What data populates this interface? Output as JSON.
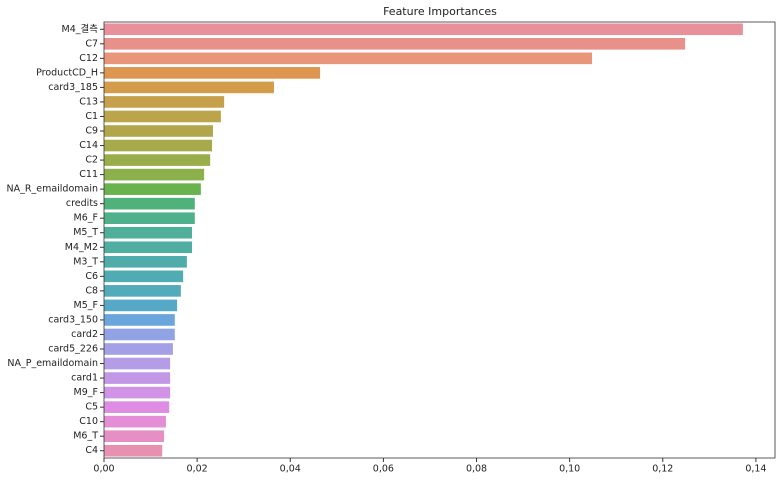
{
  "chart_data": {
    "type": "bar",
    "orientation": "horizontal",
    "title": "Feature Importances",
    "categories": [
      "M4_결측",
      "C7",
      "C12",
      "ProductCD_H",
      "card3_185",
      "C13",
      "C1",
      "C9",
      "C14",
      "C2",
      "C11",
      "NA_R_emaildomain",
      "credits",
      "M6_F",
      "M5_T",
      "M4_M2",
      "M3_T",
      "C6",
      "C8",
      "M5_F",
      "card3_150",
      "card2",
      "card5_226",
      "NA_P_emaildomain",
      "card1",
      "M9_F",
      "C5",
      "C10",
      "M6_T",
      "C4"
    ],
    "values": [
      0.1372,
      0.1248,
      0.1048,
      0.0464,
      0.0365,
      0.0258,
      0.0251,
      0.0234,
      0.0232,
      0.0228,
      0.0215,
      0.0208,
      0.0195,
      0.0195,
      0.0189,
      0.0189,
      0.0178,
      0.017,
      0.0165,
      0.0157,
      0.0152,
      0.0152,
      0.0148,
      0.0142,
      0.0142,
      0.0142,
      0.014,
      0.0133,
      0.0129,
      0.0125
    ],
    "colors": [
      "#e8919b",
      "#e8918a",
      "#e8957a",
      "#dd9550",
      "#d29c4b",
      "#c6a04a",
      "#bba44a",
      "#b1a74a",
      "#a6aa4b",
      "#9aad4b",
      "#8bb04c",
      "#68b34e",
      "#4fb27a",
      "#4fb08c",
      "#4faf98",
      "#4fada1",
      "#50acaa",
      "#51abb2",
      "#52aabb",
      "#55a8c6",
      "#6aa6db",
      "#8fa3e5",
      "#a4a0e6",
      "#b49ce6",
      "#c298e6",
      "#d093e6",
      "#de8de5",
      "#e48ed6",
      "#e68fc4",
      "#e790b1"
    ],
    "xlim": [
      0,
      0.1441
    ],
    "xticks": [
      {
        "value": 0,
        "label": "0,00"
      },
      {
        "value": 0.02,
        "label": "0,02"
      },
      {
        "value": 0.04,
        "label": "0,04"
      },
      {
        "value": 0.06,
        "label": "0,06"
      },
      {
        "value": 0.08,
        "label": "0,08"
      },
      {
        "value": 0.1,
        "label": "0,10"
      },
      {
        "value": 0.12,
        "label": "0,12"
      },
      {
        "value": 0.14,
        "label": "0,14"
      }
    ]
  }
}
